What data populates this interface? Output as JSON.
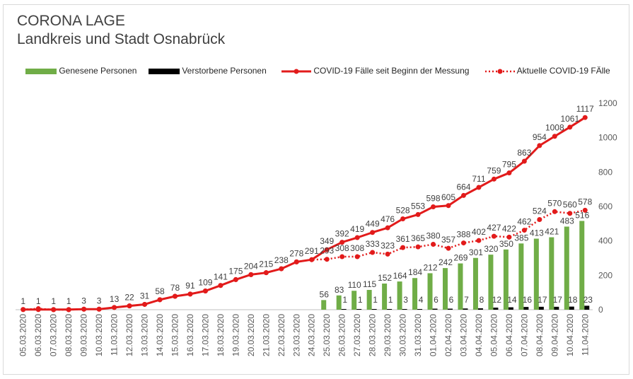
{
  "chart_data": {
    "type": "bar",
    "title": "CORONA LAGE",
    "subtitle": "Landkreis und Stadt Osnabrück",
    "categories": [
      "05.03.2020",
      "06.03.2020",
      "07.03.2020",
      "08.03.2020",
      "09.03.2020",
      "10.03.2020",
      "11.03.2020",
      "12.03.2020",
      "13.03.2020",
      "14.03.2020",
      "15.03.2020",
      "16.03.2020",
      "17.03.2020",
      "18.03.2020",
      "19.03.2020",
      "20.03.2020",
      "21.03.2020",
      "22.03.2020",
      "23.03.2020",
      "24.03.2020",
      "25.03.2020",
      "26.03.2020",
      "27.03.2020",
      "28.03.2020",
      "29.03.2020",
      "30.03.2020",
      "31.03.2020",
      "01.04.2020",
      "02.04.2020",
      "03.04.2020",
      "04.04.2020",
      "05.04.2020",
      "06.04.2020",
      "07.04.2020",
      "08.04.2020",
      "09.04.2020",
      "10.04.2020",
      "11.04.2020"
    ],
    "ylim": [
      0,
      1200
    ],
    "yticks": [
      0,
      200,
      400,
      600,
      800,
      1000,
      1200
    ],
    "legend_position": "top",
    "grid": false,
    "series": [
      {
        "name": "Genesene Personen",
        "type": "bar",
        "color": "#70ad47",
        "values": [
          null,
          null,
          null,
          null,
          null,
          null,
          null,
          null,
          null,
          null,
          null,
          null,
          null,
          null,
          null,
          null,
          null,
          null,
          null,
          null,
          56,
          83,
          110,
          115,
          152,
          164,
          184,
          212,
          242,
          269,
          301,
          320,
          350,
          385,
          413,
          421,
          483,
          516
        ]
      },
      {
        "name": "Verstorbene Personen",
        "type": "bar",
        "color": "#000000",
        "values": [
          null,
          null,
          null,
          null,
          null,
          null,
          null,
          null,
          null,
          null,
          null,
          null,
          null,
          null,
          null,
          null,
          null,
          null,
          null,
          null,
          null,
          1,
          1,
          1,
          1,
          3,
          4,
          6,
          6,
          7,
          8,
          12,
          14,
          16,
          17,
          17,
          18,
          23
        ]
      },
      {
        "name": "COVID-19 Fälle seit Beginn der Messung",
        "type": "line",
        "color": "#e21b1b",
        "values": [
          1,
          1,
          1,
          1,
          3,
          3,
          13,
          22,
          31,
          58,
          78,
          91,
          109,
          141,
          175,
          204,
          215,
          238,
          278,
          291,
          349,
          392,
          419,
          449,
          476,
          528,
          553,
          598,
          605,
          664,
          711,
          759,
          795,
          863,
          954,
          1008,
          1061,
          1117
        ]
      },
      {
        "name": "Aktuelle COVID-19 FÄlle",
        "type": "line",
        "style": "dotted",
        "color": "#e21b1b",
        "values": [
          1,
          6,
          0,
          0,
          3,
          3,
          13,
          22,
          31,
          58,
          78,
          91,
          109,
          141,
          175,
          204,
          215,
          238,
          278,
          291,
          293,
          308,
          308,
          333,
          323,
          361,
          365,
          380,
          357,
          388,
          402,
          427,
          422,
          462,
          524,
          570,
          560,
          578
        ]
      }
    ]
  }
}
